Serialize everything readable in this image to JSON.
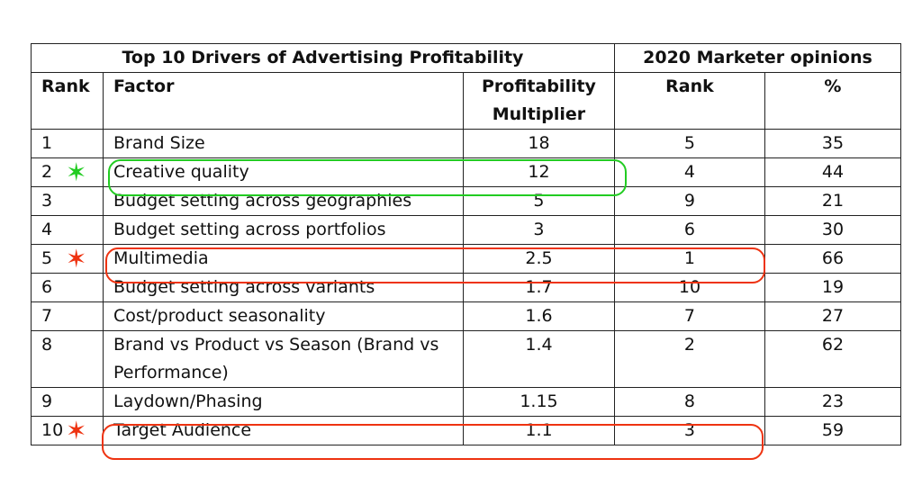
{
  "table": {
    "group_title_left": "Top 10 Drivers of Advertising Profitability",
    "group_title_right": "2020 Marketer opinions",
    "columns": {
      "rank": "Rank",
      "factor": "Factor",
      "multiplier": "Profitability Multiplier",
      "opinion_rank": "Rank",
      "percent": "%"
    },
    "rows": [
      {
        "rank": "1",
        "factor": "Brand Size",
        "multiplier": "18",
        "opinion_rank": "5",
        "percent": "35"
      },
      {
        "rank": "2",
        "factor": "Creative quality",
        "multiplier": "12",
        "opinion_rank": "4",
        "percent": "44"
      },
      {
        "rank": "3",
        "factor": "Budget setting across geographies",
        "multiplier": "5",
        "opinion_rank": "9",
        "percent": "21"
      },
      {
        "rank": "4",
        "factor": "Budget setting across portfolios",
        "multiplier": "3",
        "opinion_rank": "6",
        "percent": "30"
      },
      {
        "rank": "5",
        "factor": "Multimedia",
        "multiplier": "2.5",
        "opinion_rank": "1",
        "percent": "66"
      },
      {
        "rank": "6",
        "factor": "Budget setting across variants",
        "multiplier": "1.7",
        "opinion_rank": "10",
        "percent": "19"
      },
      {
        "rank": "7",
        "factor": "Cost/product seasonality",
        "multiplier": "1.6",
        "opinion_rank": "7",
        "percent": "27"
      },
      {
        "rank": "8",
        "factor": "Brand vs Product vs Season (Brand vs Performance)",
        "multiplier": "1.4",
        "opinion_rank": "2",
        "percent": "62"
      },
      {
        "rank": "9",
        "factor": "Laydown/Phasing",
        "multiplier": "1.15",
        "opinion_rank": "8",
        "percent": "23"
      },
      {
        "rank": "10",
        "factor": "Target Audience",
        "multiplier": "1.1",
        "opinion_rank": "3",
        "percent": "59"
      }
    ]
  },
  "annotations": {
    "star_glyph": "✶",
    "green_color": "#22cc22",
    "red_color": "#ee3311"
  }
}
